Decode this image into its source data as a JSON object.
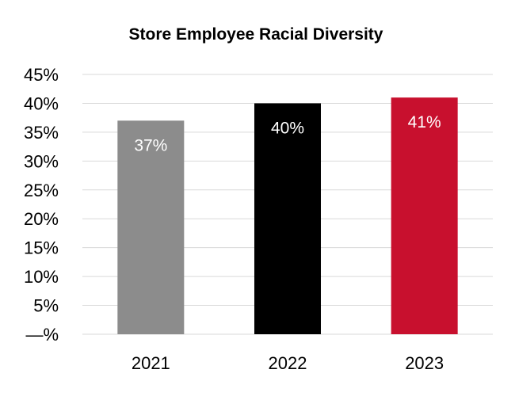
{
  "chart_data": {
    "type": "bar",
    "title": "Store Employee Racial Diversity",
    "categories": [
      "2021",
      "2022",
      "2023"
    ],
    "values": [
      37,
      40,
      41
    ],
    "data_labels": [
      "37%",
      "40%",
      "41%"
    ],
    "bar_colors": [
      "#8c8c8c",
      "#000000",
      "#c8102e"
    ],
    "ylim": [
      0,
      45
    ],
    "y_ticks": [
      0,
      5,
      10,
      15,
      20,
      25,
      30,
      35,
      40,
      45
    ],
    "y_tick_labels": [
      "—%",
      "5%",
      "10%",
      "15%",
      "20%",
      "25%",
      "30%",
      "35%",
      "40%",
      "45%"
    ],
    "xlabel": "",
    "ylabel": "",
    "grid": true,
    "legend": "none"
  }
}
